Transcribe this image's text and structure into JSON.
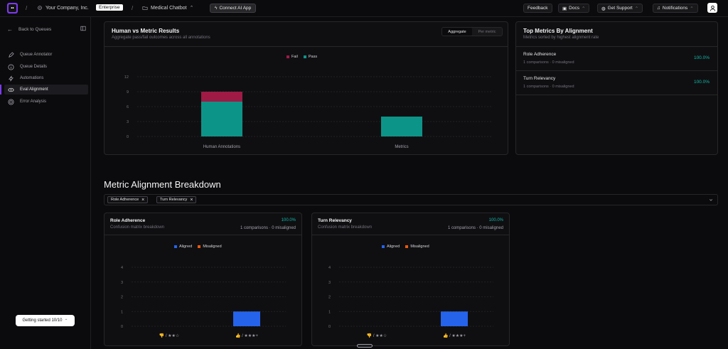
{
  "topbar": {
    "company": "Your Company, Inc.",
    "plan_badge": "Enterprise",
    "project": "Medical Chatbot",
    "connect_label": "Connect AI App",
    "feedback": "Feedback",
    "docs": "Docs",
    "support": "Get Support",
    "notifications": "Notifications"
  },
  "sidebar": {
    "back": "Back to Queues",
    "items": [
      {
        "label": "Queue Annotator",
        "icon": "pencil-icon"
      },
      {
        "label": "Queue Details",
        "icon": "info-icon"
      },
      {
        "label": "Automations",
        "icon": "bolt-icon"
      },
      {
        "label": "Eval Alignment",
        "icon": "link-icon",
        "active": true
      },
      {
        "label": "Error Analysis",
        "icon": "target-icon"
      }
    ],
    "getting_started": "Getting started 10/10"
  },
  "human_vs_metric": {
    "title": "Human vs Metric Results",
    "subtitle": "Aggregate pass/fail outcomes across all annotations",
    "toggle": [
      "Aggregate",
      "Per metric"
    ],
    "toggle_active": "Aggregate",
    "legend": [
      "Fail",
      "Pass"
    ]
  },
  "top_metrics": {
    "title": "Top Metrics By Alignment",
    "subtitle": "Metrics sorted by highest alignment rate",
    "rows": [
      {
        "name": "Role Adherence",
        "detail": "1 comparisons · 0 misaligned",
        "value": "100.0%"
      },
      {
        "name": "Turn Relevancy",
        "detail": "1 comparisons · 0 misaligned",
        "value": "100.0%"
      }
    ]
  },
  "breakdown": {
    "title": "Metric Alignment Breakdown",
    "chips": [
      "Role Adherence",
      "Turn Relevancy"
    ],
    "cards": [
      {
        "name": "Role Adherence",
        "subtitle": "Confusion matrix breakdown",
        "percent": "100.0%",
        "comparisons": "1 comparisons · 0 misaligned",
        "legend": [
          "Aligned",
          "Misaligned"
        ]
      },
      {
        "name": "Turn Relevancy",
        "subtitle": "Confusion matrix breakdown",
        "percent": "100.0%",
        "comparisons": "1 comparisons · 0 misaligned",
        "legend": [
          "Aligned",
          "Misaligned"
        ]
      }
    ]
  },
  "colors": {
    "fail": "#9f1a44",
    "pass": "#0d9488",
    "aligned": "#2563eb",
    "misaligned": "#ea580c",
    "accent": "#7c3aed"
  },
  "chart_data": [
    {
      "type": "bar",
      "stacked": true,
      "categories": [
        "Human Annotations",
        "Metrics"
      ],
      "series": [
        {
          "name": "Fail",
          "values": [
            2,
            0
          ]
        },
        {
          "name": "Pass",
          "values": [
            7,
            4
          ]
        }
      ],
      "yticks": [
        0,
        3,
        6,
        9,
        12
      ],
      "ylim": [
        0,
        12
      ],
      "legend_position": "top-center",
      "grid": true
    },
    {
      "type": "bar",
      "categories": [
        "👎 / ★★☆",
        "👍 / ★★★+"
      ],
      "series": [
        {
          "name": "Aligned",
          "values": [
            0,
            1
          ]
        },
        {
          "name": "Misaligned",
          "values": [
            0,
            0
          ]
        }
      ],
      "yticks": [
        0,
        1,
        2,
        3,
        4
      ],
      "ylim": [
        0,
        4
      ],
      "legend_position": "top-center",
      "grid": true
    },
    {
      "type": "bar",
      "categories": [
        "👎 / ★★☆",
        "👍 / ★★★+"
      ],
      "series": [
        {
          "name": "Aligned",
          "values": [
            0,
            1
          ]
        },
        {
          "name": "Misaligned",
          "values": [
            0,
            0
          ]
        }
      ],
      "yticks": [
        0,
        1,
        2,
        3,
        4
      ],
      "ylim": [
        0,
        4
      ],
      "legend_position": "top-center",
      "grid": true
    }
  ]
}
